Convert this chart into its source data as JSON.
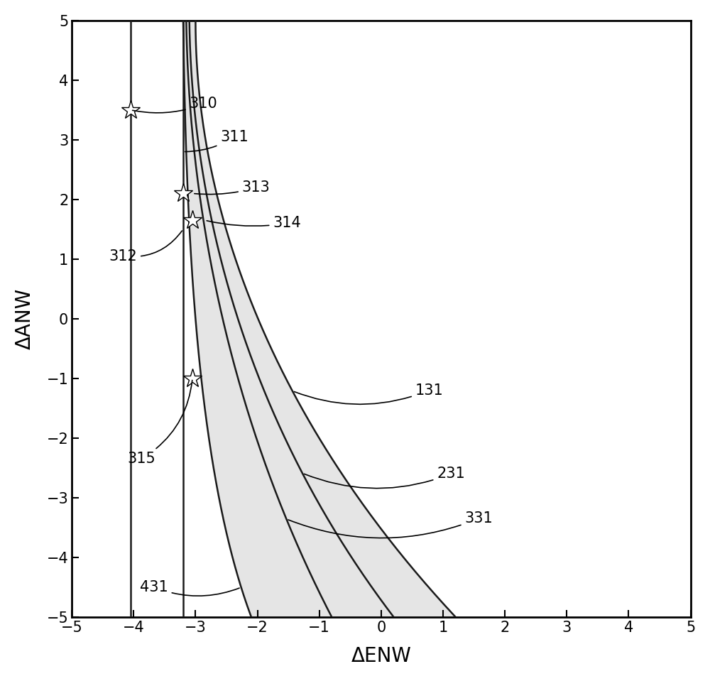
{
  "xlim": [
    -5,
    5
  ],
  "ylim": [
    -5,
    5
  ],
  "xlabel": "ΔENW",
  "ylabel": "ΔANW",
  "xticks": [
    -5,
    -4,
    -3,
    -2,
    -1,
    0,
    1,
    2,
    3,
    4,
    5
  ],
  "yticks": [
    -5,
    -4,
    -3,
    -2,
    -1,
    0,
    1,
    2,
    3,
    4,
    5
  ],
  "star_points": [
    [
      -4.05,
      3.5
    ],
    [
      -3.2,
      2.1
    ],
    [
      -3.05,
      1.65
    ],
    [
      -3.05,
      -1.0
    ]
  ],
  "background_color": "#ffffff",
  "line_color": "#1a1a1a",
  "fill_color": "#d0d0d0",
  "line_lw": 1.8
}
